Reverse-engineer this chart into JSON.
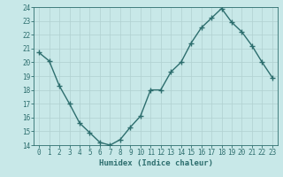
{
  "title": "",
  "xlabel": "Humidex (Indice chaleur)",
  "ylabel": "",
  "x": [
    0,
    1,
    2,
    3,
    4,
    5,
    6,
    7,
    8,
    9,
    10,
    11,
    12,
    13,
    14,
    15,
    16,
    17,
    18,
    19,
    20,
    21,
    22,
    23
  ],
  "y": [
    20.7,
    20.1,
    18.3,
    17.0,
    15.6,
    14.9,
    14.2,
    14.0,
    14.4,
    15.3,
    16.1,
    18.0,
    18.0,
    19.3,
    20.0,
    21.4,
    22.5,
    23.2,
    23.9,
    22.9,
    22.2,
    21.2,
    20.0,
    18.9
  ],
  "line_color": "#2d6e6e",
  "marker": "+",
  "marker_size": 4,
  "linewidth": 1.0,
  "ylim": [
    14,
    24
  ],
  "yticks": [
    14,
    15,
    16,
    17,
    18,
    19,
    20,
    21,
    22,
    23,
    24
  ],
  "xticks": [
    0,
    1,
    2,
    3,
    4,
    5,
    6,
    7,
    8,
    9,
    10,
    11,
    12,
    13,
    14,
    15,
    16,
    17,
    18,
    19,
    20,
    21,
    22,
    23
  ],
  "bg_color": "#c8e8e8",
  "grid_color": "#b0d0d0",
  "tick_label_fontsize": 5.5,
  "xlabel_fontsize": 6.5,
  "label_color": "#2d6e6e"
}
